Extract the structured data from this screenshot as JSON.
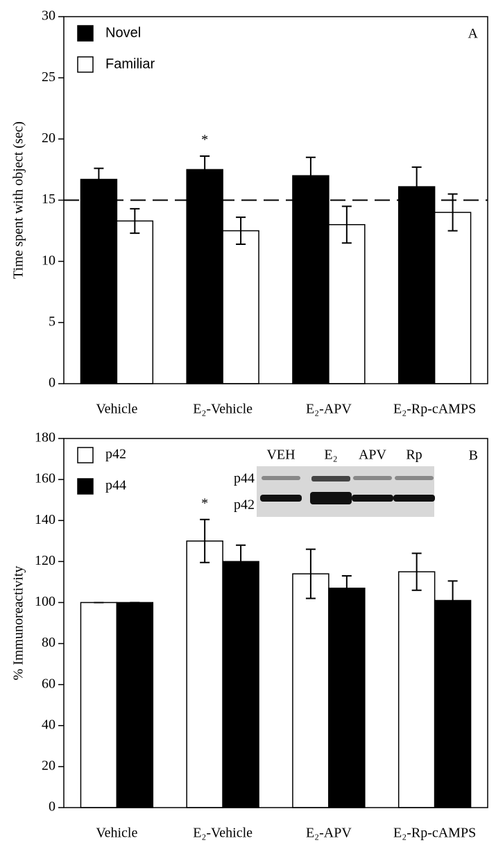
{
  "chart_data": [
    {
      "type": "bar",
      "panel_label": "A",
      "y_label": "Time spent with object (sec)",
      "categories": [
        "Vehicle",
        "E₂-Vehicle",
        "E₂-APV",
        "E₂-Rp-cAMPS"
      ],
      "series": [
        {
          "name": "Novel",
          "color": "#000000",
          "values": [
            16.7,
            17.5,
            17.0,
            16.1
          ],
          "errors": [
            0.9,
            1.1,
            1.5,
            1.6
          ]
        },
        {
          "name": "Familiar",
          "color": "#ffffff",
          "values": [
            13.3,
            12.5,
            13.0,
            14.0
          ],
          "errors": [
            1.0,
            1.1,
            1.5,
            1.5
          ]
        }
      ],
      "ylim": [
        0,
        30
      ],
      "yticks": [
        0,
        5,
        10,
        15,
        20,
        25,
        30
      ],
      "reference_line": 15,
      "annotations": [
        "*"
      ],
      "legend": "upper left"
    },
    {
      "type": "bar",
      "panel_label": "B",
      "y_label": "% Immunoreactivity",
      "categories": [
        "Vehicle",
        "E₂-Vehicle",
        "E₂-APV",
        "E₂-Rp-cAMPS"
      ],
      "series": [
        {
          "name": "p42",
          "color": "#ffffff",
          "values": [
            100,
            130,
            114,
            115
          ],
          "errors": [
            0,
            10.5,
            12,
            9
          ]
        },
        {
          "name": "p44",
          "color": "#000000",
          "values": [
            100,
            120,
            107,
            101
          ],
          "errors": [
            0,
            8,
            6,
            9.5
          ]
        }
      ],
      "ylim": [
        0,
        180
      ],
      "yticks": [
        0,
        20,
        40,
        60,
        80,
        100,
        120,
        140,
        160,
        180
      ],
      "annotations": [
        "*"
      ],
      "legend": "upper left",
      "inset": {
        "lanes": [
          "VEH",
          "E₂",
          "APV",
          "Rp"
        ],
        "bands": [
          "p44",
          "p42"
        ]
      }
    }
  ]
}
